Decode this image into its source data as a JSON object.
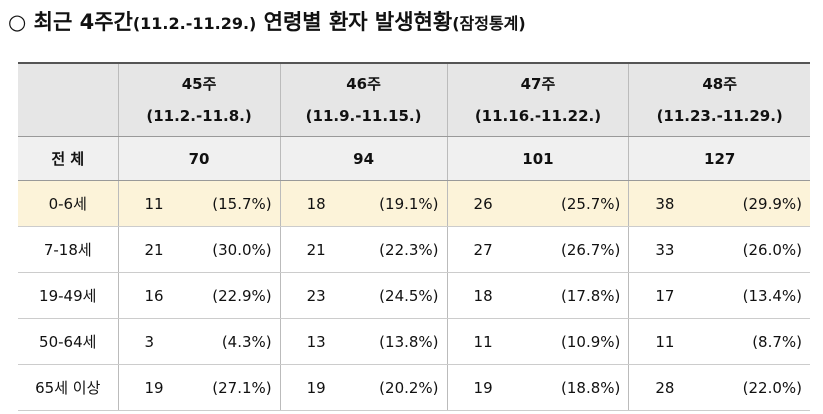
{
  "title": {
    "bullet": "○",
    "main": "최근 4주간",
    "period": "(11.2.-11.29.)",
    "subject": "연령별 환자 발생현황",
    "note": "(잠정통계)"
  },
  "table": {
    "header": [
      [
        "45주",
        "(11.2.-11.8.)"
      ],
      [
        "46주",
        "(11.9.-11.15.)"
      ],
      [
        "47주",
        "(11.16.-11.22.)"
      ],
      [
        "48주",
        "(11.23.-11.29.)"
      ]
    ],
    "total": {
      "label": "전  체",
      "values": [
        70,
        94,
        101,
        127
      ]
    },
    "rows": [
      [
        "0-6세",
        11,
        "(15.7%)",
        18,
        "(19.1%)",
        26,
        "(25.7%)",
        38,
        "(29.9%)"
      ],
      [
        "7-18세",
        21,
        "(30.0%)",
        21,
        "(22.3%)",
        27,
        "(26.7%)",
        33,
        "(26.0%)"
      ],
      [
        "19-49세",
        16,
        "(22.9%)",
        23,
        "(24.5%)",
        18,
        "(17.8%)",
        17,
        "(13.4%)"
      ],
      [
        "50-64세",
        3,
        "(4.3%)",
        13,
        "(13.8%)",
        11,
        "(10.9%)",
        11,
        "(8.7%)"
      ],
      [
        "65세 이상",
        19,
        "(27.1%)",
        19,
        "(20.2%)",
        19,
        "(18.8%)",
        28,
        "(22.0%)"
      ]
    ]
  }
}
